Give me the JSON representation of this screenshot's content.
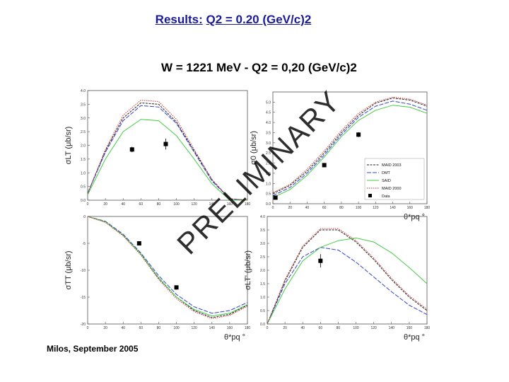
{
  "slide": {
    "title_prefix": "Results:",
    "title_main": "Q2 = 0.20 (GeV/c)2",
    "chart_header": "W = 1221 MeV   -   Q2 = 0,20 (GeV/c)2",
    "footer": "Milos, September 2005",
    "watermark": "PRELIMINARY"
  },
  "colors": {
    "title": "#1a1a99",
    "MAID 2003": "#222222",
    "DMT": "#3344cc",
    "SAID": "#44cc44",
    "MAID 2000": "#cc3333",
    "Data": "#000000"
  },
  "chart_data": [
    {
      "type": "line",
      "panel": "top-left",
      "ylabel": "σLT (μb/sr)",
      "xlabel": "",
      "xlim": [
        0,
        180
      ],
      "ylim": [
        0,
        4
      ],
      "xticks": [
        "0",
        "20",
        "40",
        "60",
        "80",
        "100",
        "120",
        "140",
        "160",
        "180"
      ],
      "yticks": [
        "0.0",
        "0.5",
        "1.0",
        "1.5",
        "2.0",
        "2.5",
        "3.0",
        "3.5",
        "4.0"
      ],
      "series": [
        {
          "name": "MAID 2003",
          "x": [
            0,
            20,
            40,
            60,
            80,
            100,
            120,
            140,
            160,
            180
          ],
          "y": [
            0.25,
            1.8,
            3.0,
            3.55,
            3.5,
            2.85,
            1.8,
            0.75,
            0.05,
            -0.2
          ]
        },
        {
          "name": "DMT",
          "x": [
            0,
            20,
            40,
            60,
            80,
            100,
            120,
            140,
            160,
            180
          ],
          "y": [
            0.25,
            1.75,
            2.9,
            3.45,
            3.4,
            2.8,
            1.75,
            0.7,
            0.05,
            -0.2
          ]
        },
        {
          "name": "SAID",
          "x": [
            0,
            20,
            40,
            60,
            80,
            100,
            120,
            140,
            160,
            180
          ],
          "y": [
            0.2,
            1.5,
            2.5,
            2.95,
            2.9,
            2.35,
            1.5,
            0.6,
            0.0,
            -0.2
          ]
        },
        {
          "name": "MAID 2000",
          "x": [
            0,
            20,
            40,
            60,
            80,
            100,
            120,
            140,
            160,
            180
          ],
          "y": [
            0.25,
            1.85,
            3.1,
            3.65,
            3.6,
            2.95,
            1.85,
            0.75,
            0.05,
            -0.2
          ]
        }
      ],
      "data": {
        "x": [
          50,
          88
        ],
        "y": [
          1.85,
          2.05
        ],
        "err": [
          0.1,
          0.2
        ]
      }
    },
    {
      "type": "line",
      "panel": "top-right",
      "ylabel": "σ0 (μb/sr)",
      "xlabel": "θ*pq °",
      "xlim": [
        0,
        180
      ],
      "ylim": [
        0,
        5.5
      ],
      "xticks": [
        "0",
        "20",
        "40",
        "60",
        "80",
        "100",
        "120",
        "140",
        "160",
        "180"
      ],
      "yticks": [
        "0.0",
        "0.5",
        "1.0",
        "1.5",
        "2.0",
        "2.5",
        "3.0",
        "3.5",
        "4.0",
        "4.5",
        "5.0"
      ],
      "series": [
        {
          "name": "MAID 2003",
          "x": [
            0,
            20,
            40,
            60,
            80,
            100,
            120,
            140,
            160,
            180
          ],
          "y": [
            0.5,
            0.9,
            1.6,
            2.5,
            3.5,
            4.35,
            4.95,
            5.2,
            5.1,
            4.8
          ]
        },
        {
          "name": "DMT",
          "x": [
            0,
            20,
            40,
            60,
            80,
            100,
            120,
            140,
            160,
            180
          ],
          "y": [
            0.4,
            0.8,
            1.5,
            2.4,
            3.4,
            4.25,
            4.8,
            5.05,
            4.9,
            4.6
          ]
        },
        {
          "name": "SAID",
          "x": [
            0,
            20,
            40,
            60,
            80,
            100,
            120,
            140,
            160,
            180
          ],
          "y": [
            0.3,
            0.7,
            1.4,
            2.3,
            3.3,
            4.1,
            4.6,
            4.85,
            4.75,
            4.45
          ]
        },
        {
          "name": "MAID 2000",
          "x": [
            0,
            20,
            40,
            60,
            80,
            100,
            120,
            140,
            160,
            180
          ],
          "y": [
            0.55,
            0.95,
            1.7,
            2.6,
            3.6,
            4.45,
            5.0,
            5.25,
            5.15,
            4.85
          ]
        }
      ],
      "data": {
        "x": [
          3,
          60,
          100
        ],
        "y": [
          0.3,
          1.9,
          3.4
        ],
        "err": [
          0.05,
          0.08,
          0.12
        ]
      },
      "legend": [
        "MAID 2003",
        "DMT",
        "SAID",
        "MAID 2000",
        "Data"
      ]
    },
    {
      "type": "line",
      "panel": "bottom-left",
      "ylabel": "σTT (μb/sr)",
      "xlabel": "θ*pq °",
      "xlim": [
        0,
        180
      ],
      "ylim": [
        -20,
        0
      ],
      "xticks": [
        "0",
        "20",
        "40",
        "60",
        "80",
        "100",
        "120",
        "140",
        "160",
        "180"
      ],
      "yticks": [
        "0",
        "-5",
        "-10",
        "-15",
        "-20"
      ],
      "series": [
        {
          "name": "MAID 2003",
          "x": [
            0,
            20,
            40,
            60,
            80,
            100,
            120,
            140,
            160,
            180
          ],
          "y": [
            0,
            -1.0,
            -3.5,
            -7.0,
            -11.5,
            -15.0,
            -17.5,
            -18.8,
            -18.2,
            -16.5
          ]
        },
        {
          "name": "DMT",
          "x": [
            0,
            20,
            40,
            60,
            80,
            100,
            120,
            140,
            160,
            180
          ],
          "y": [
            0,
            -0.9,
            -3.3,
            -6.8,
            -11.0,
            -14.5,
            -16.8,
            -18.0,
            -17.5,
            -16.0
          ]
        },
        {
          "name": "SAID",
          "x": [
            0,
            20,
            40,
            60,
            80,
            100,
            120,
            140,
            160,
            180
          ],
          "y": [
            0,
            -1.0,
            -3.5,
            -7.0,
            -11.4,
            -15.0,
            -17.3,
            -18.5,
            -18.0,
            -16.4
          ]
        },
        {
          "name": "MAID 2000",
          "x": [
            0,
            20,
            40,
            60,
            80,
            100,
            120,
            140,
            160,
            180
          ],
          "y": [
            0,
            -1.1,
            -3.6,
            -7.2,
            -11.7,
            -15.3,
            -17.7,
            -19.0,
            -18.4,
            -16.7
          ]
        }
      ],
      "data": {
        "x": [
          58,
          100
        ],
        "y": [
          -5.0,
          -13.2
        ],
        "err": [
          0.3,
          0.4
        ]
      }
    },
    {
      "type": "line",
      "panel": "bottom-right",
      "ylabel": "σLT' (μb/sr)",
      "xlabel": "θ*pq °",
      "xlim": [
        0,
        180
      ],
      "ylim": [
        0,
        4
      ],
      "xticks": [
        "0",
        "20",
        "40",
        "60",
        "80",
        "100",
        "120",
        "140",
        "160",
        "180"
      ],
      "yticks": [
        "0.0",
        "0.5",
        "1.0",
        "1.5",
        "2.0",
        "2.5",
        "3.0",
        "3.5",
        "4.0"
      ],
      "series": [
        {
          "name": "MAID 2003",
          "x": [
            0,
            20,
            40,
            60,
            80,
            100,
            120,
            140,
            160,
            180
          ],
          "y": [
            0,
            1.6,
            2.85,
            3.5,
            3.5,
            3.05,
            2.4,
            1.65,
            1.0,
            0.5
          ]
        },
        {
          "name": "DMT",
          "x": [
            0,
            20,
            40,
            60,
            80,
            100,
            120,
            140,
            160,
            180
          ],
          "y": [
            0,
            1.5,
            2.5,
            2.85,
            2.75,
            2.3,
            1.75,
            1.2,
            0.7,
            0.35
          ]
        },
        {
          "name": "SAID",
          "x": [
            0,
            20,
            40,
            60,
            80,
            100,
            120,
            140,
            160,
            180
          ],
          "y": [
            0,
            1.3,
            2.35,
            2.85,
            3.1,
            3.2,
            3.05,
            2.65,
            2.1,
            1.5
          ]
        },
        {
          "name": "MAID 2000",
          "x": [
            0,
            20,
            40,
            60,
            80,
            100,
            120,
            140,
            160,
            180
          ],
          "y": [
            0,
            1.65,
            2.9,
            3.55,
            3.55,
            3.1,
            2.45,
            1.7,
            1.05,
            0.55
          ]
        }
      ],
      "data": {
        "x": [
          60
        ],
        "y": [
          2.35
        ],
        "err": [
          0.25
        ]
      }
    }
  ]
}
